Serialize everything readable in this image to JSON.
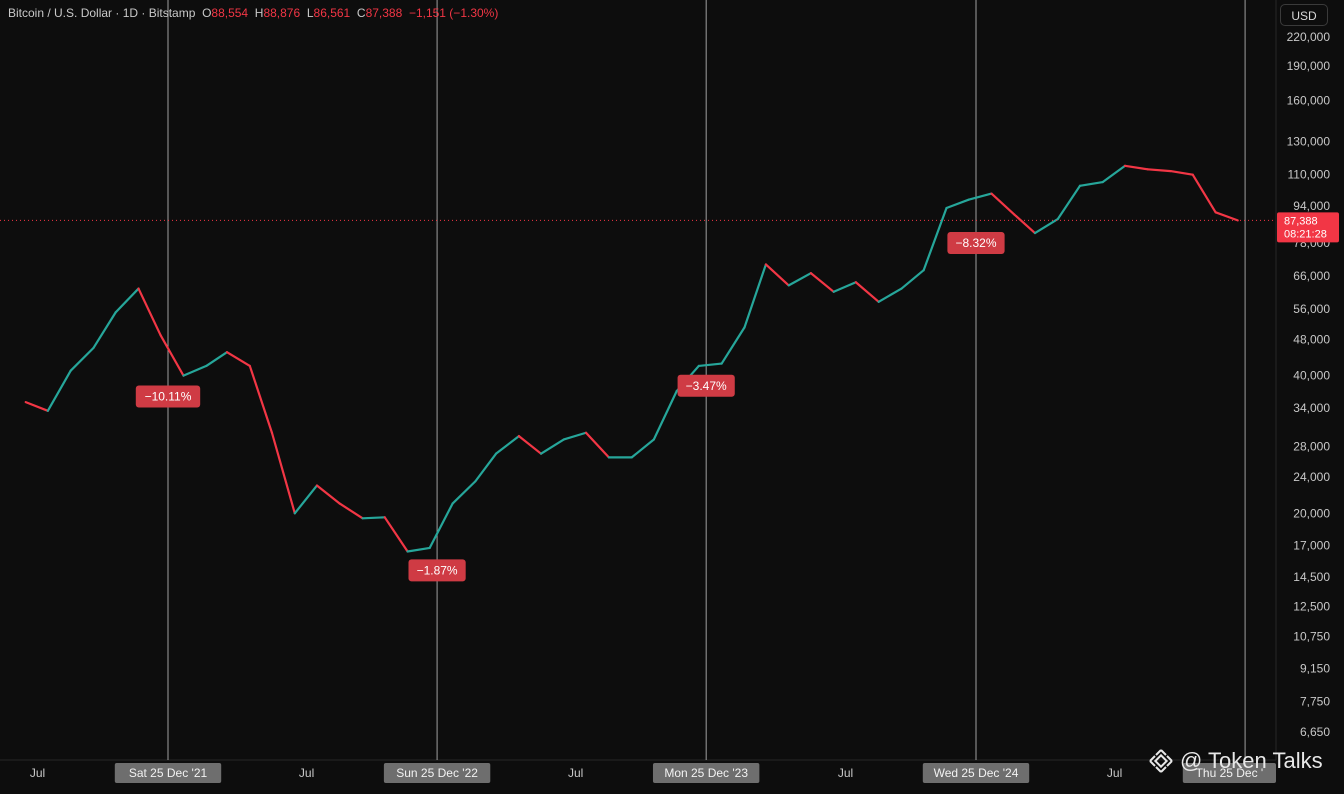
{
  "header": {
    "symbol": "Bitcoin / U.S. Dollar · 1D · Bitstamp",
    "open_label": "O",
    "open": "88,554",
    "high_label": "H",
    "high": "88,876",
    "low_label": "L",
    "low": "86,561",
    "close_label": "C",
    "close": "87,388",
    "change": "−1,151 (−1.30%)"
  },
  "currency_button": "USD",
  "price_scale": [
    "220,000",
    "190,000",
    "160,000",
    "130,000",
    "110,000",
    "94,000",
    "78,000",
    "66,000",
    "56,000",
    "48,000",
    "40,000",
    "34,000",
    "28,000",
    "24,000",
    "20,000",
    "17,000",
    "14,500",
    "12,500",
    "10,750",
    "9,150",
    "7,750",
    "6,650"
  ],
  "last_price": {
    "price": "87,388",
    "countdown": "08:21:28"
  },
  "time_axis": [
    {
      "label": "Jul"
    },
    {
      "label": "Sat 25 Dec '21",
      "highlight": true
    },
    {
      "label": "Jul"
    },
    {
      "label": "Sun 25 Dec '22",
      "highlight": true
    },
    {
      "label": "Jul"
    },
    {
      "label": "Mon 25 Dec '23",
      "highlight": true
    },
    {
      "label": "Jul"
    },
    {
      "label": "Wed 25 Dec '24",
      "highlight": true
    },
    {
      "label": "Jul"
    },
    {
      "label": "Thu 25 Dec '",
      "highlight": true
    }
  ],
  "annotations": [
    {
      "text": "−10.11%"
    },
    {
      "text": "−1.87%"
    },
    {
      "text": "−3.47%"
    },
    {
      "text": "−8.32%"
    }
  ],
  "watermark": {
    "text": "@ Token Talks"
  },
  "colors": {
    "background": "#0d0d0d",
    "up": "#26a69a",
    "down": "#f23645",
    "axis_text": "#c8c8c8",
    "marker_line": "#d0d0d0",
    "label_bg": "#cf3b44"
  },
  "chart_data": {
    "type": "line",
    "title": "Bitcoin / U.S. Dollar · 1D · Bitstamp",
    "xlabel": "",
    "ylabel": "",
    "log_scale": true,
    "ylim": [
      6650,
      220000
    ],
    "x": [
      "2021-06",
      "2021-07",
      "2021-08",
      "2021-09",
      "2021-10",
      "2021-11",
      "2021-12",
      "2022-01",
      "2022-02",
      "2022-03",
      "2022-04",
      "2022-05",
      "2022-06",
      "2022-07",
      "2022-08",
      "2022-09",
      "2022-10",
      "2022-11",
      "2022-12",
      "2023-01",
      "2023-02",
      "2023-03",
      "2023-04",
      "2023-05",
      "2023-06",
      "2023-07",
      "2023-08",
      "2023-09",
      "2023-10",
      "2023-11",
      "2023-12",
      "2024-01",
      "2024-02",
      "2024-03",
      "2024-04",
      "2024-05",
      "2024-06",
      "2024-07",
      "2024-08",
      "2024-09",
      "2024-10",
      "2024-11",
      "2024-12",
      "2025-01",
      "2025-02",
      "2025-03",
      "2025-04",
      "2025-05",
      "2025-06",
      "2025-07",
      "2025-08",
      "2025-09",
      "2025-10",
      "2025-11",
      "2025-12"
    ],
    "series": [
      {
        "values": [
          35000,
          33500,
          41000,
          46000,
          55000,
          62000,
          49000,
          40000,
          42000,
          45000,
          42000,
          30000,
          20000,
          23000,
          21000,
          19500,
          19600,
          16500,
          16800,
          21000,
          23500,
          27000,
          29500,
          27000,
          29000,
          30000,
          26500,
          26500,
          29000,
          37000,
          42000,
          42500,
          51000,
          70000,
          63000,
          67000,
          61000,
          64000,
          58000,
          62000,
          68000,
          93000,
          97000,
          100000,
          90000,
          82000,
          88000,
          104000,
          106000,
          115000,
          113000,
          112000,
          110000,
          91000,
          87388
        ]
      }
    ],
    "markers": [
      {
        "date": "2021-12-25",
        "change": "−10.11%"
      },
      {
        "date": "2022-12-25",
        "change": "−1.87%"
      },
      {
        "date": "2023-12-25",
        "change": "−3.47%"
      },
      {
        "date": "2024-12-25",
        "change": "−8.32%"
      },
      {
        "date": "2025-12-25"
      }
    ],
    "last_price": 87388,
    "grid": false
  }
}
